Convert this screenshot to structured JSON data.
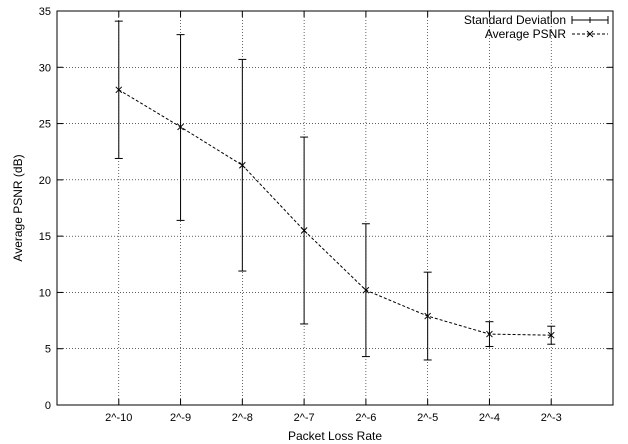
{
  "chart_data": {
    "type": "line",
    "title": "",
    "xlabel": "Packet Loss Rate",
    "ylabel": "Average PSNR (dB)",
    "categories": [
      "2^-10",
      "2^-9",
      "2^-8",
      "2^-7",
      "2^-6",
      "2^-5",
      "2^-4",
      "2^-3"
    ],
    "ylim": [
      0,
      35
    ],
    "yticks": [
      0,
      5,
      10,
      15,
      20,
      25,
      30,
      35
    ],
    "grid": true,
    "legend_position": "top-right",
    "series": [
      {
        "name": "Average PSNR",
        "style": "dashed line with x markers",
        "values": [
          28.0,
          24.7,
          21.3,
          15.5,
          10.2,
          7.9,
          6.3,
          6.2
        ]
      },
      {
        "name": "Standard Deviation",
        "style": "error bars",
        "low": [
          21.9,
          16.4,
          11.9,
          7.2,
          4.3,
          4.0,
          5.2,
          5.4
        ],
        "high": [
          34.1,
          32.9,
          30.7,
          23.8,
          16.1,
          11.8,
          7.4,
          7.0
        ]
      }
    ]
  }
}
